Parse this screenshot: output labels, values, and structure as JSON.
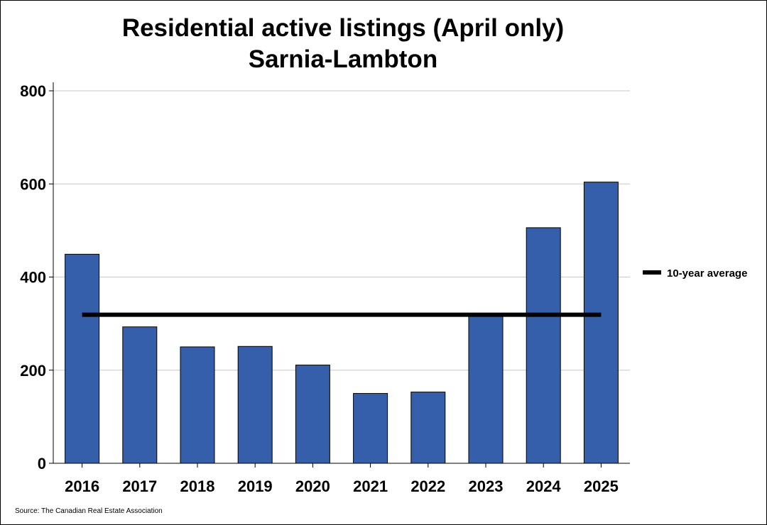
{
  "chart_data": {
    "type": "bar",
    "title": [
      "Residential active listings (April only)",
      "Sarnia-Lambton"
    ],
    "categories": [
      "2016",
      "2017",
      "2018",
      "2019",
      "2020",
      "2021",
      "2022",
      "2023",
      "2024",
      "2025"
    ],
    "values": [
      449,
      293,
      250,
      251,
      211,
      150,
      153,
      319,
      506,
      604
    ],
    "reference_line": {
      "label": "10-year average",
      "value": 319
    },
    "ylim": [
      0,
      800
    ],
    "yticks": [
      "0",
      "200",
      "400",
      "600",
      "800"
    ],
    "grid": "horizontal",
    "legend_position": "right",
    "bar_color": "#355FAB",
    "reference_line_color": "#000000"
  },
  "source": "Source: The Canadian Real Estate Association"
}
